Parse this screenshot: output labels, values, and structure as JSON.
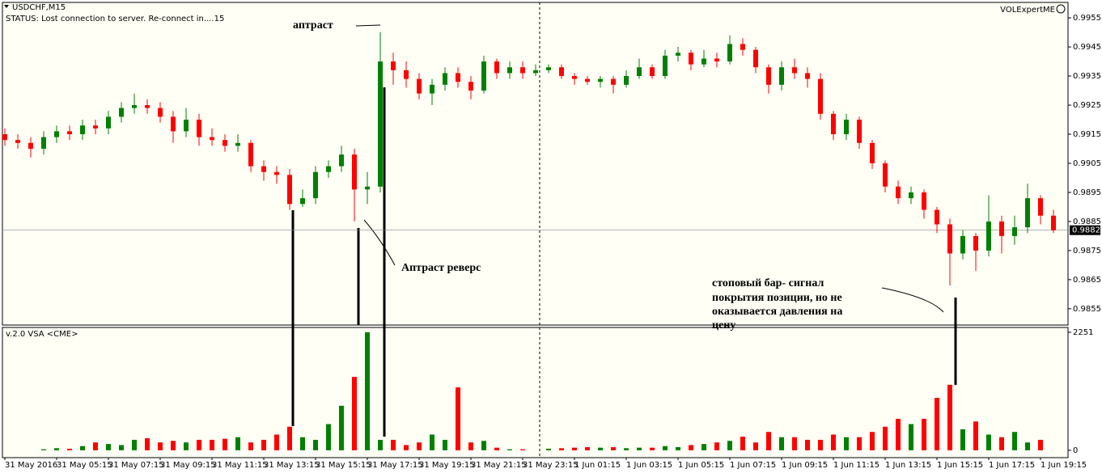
{
  "header": {
    "symbol": "USDCHF,M15",
    "status": "STATUS:  Lost connection to server. Re-connect in....15",
    "expert": "VOLExpertME"
  },
  "chart_data": [
    {
      "type": "candlestick",
      "up_color": "#008000",
      "down_color": "#ff0000",
      "categories": [
        "31 May 2016",
        null,
        null,
        null,
        "31 May 05:15",
        null,
        null,
        null,
        "31 May 07:15",
        null,
        null,
        null,
        "31 May 09:15",
        null,
        null,
        null,
        "31 May 11:15",
        null,
        null,
        null,
        "31 May 13:15",
        null,
        null,
        null,
        "31 May 15:15",
        null,
        null,
        null,
        "31 May 17:15",
        null,
        null,
        null,
        "31 May 19:15",
        null,
        null,
        null,
        "31 May 21:15",
        null,
        null,
        null,
        "31 May 23:15",
        null,
        null,
        null,
        "1 Jun 01:15",
        null,
        null,
        null,
        "1 Jun 03:15",
        null,
        null,
        null,
        "1 Jun 05:15",
        null,
        null,
        null,
        "1 Jun 07:15",
        null,
        null,
        null,
        "1 Jun 09:15",
        null,
        null,
        null,
        "1 Jun 11:15",
        null,
        null,
        null,
        "1 Jun 13:15",
        null,
        null,
        null,
        "1 Jun 15:15",
        null,
        null,
        null,
        "1 Jun 17:15",
        null,
        null,
        null,
        "1 Jun 19:15",
        null
      ],
      "open": [
        0.9915,
        0.9913,
        0.9912,
        0.991,
        0.9914,
        0.9916,
        0.9915,
        0.9918,
        0.9917,
        0.9921,
        0.9924,
        0.9925,
        0.9924,
        0.9921,
        0.9916,
        0.992,
        0.9914,
        0.9913,
        0.9911,
        0.9912,
        0.9904,
        0.9902,
        0.9901,
        0.9891,
        0.9893,
        0.9902,
        0.9904,
        0.9908,
        0.9896,
        0.9897,
        0.994,
        0.9937,
        0.9934,
        0.9929,
        0.9932,
        0.9936,
        0.9933,
        0.993,
        0.994,
        0.9936,
        0.9938,
        0.9936,
        0.9937,
        0.9938,
        0.9935,
        0.9934,
        0.9933,
        0.9934,
        0.9932,
        0.9935,
        0.9938,
        0.9935,
        0.9942,
        0.9943,
        0.9939,
        0.9941,
        0.994,
        0.9946,
        0.9944,
        0.9938,
        0.9932,
        0.9938,
        0.9936,
        0.9934,
        0.9922,
        0.9915,
        0.992,
        0.9912,
        0.9905,
        0.9897,
        0.9893,
        0.9895,
        0.9889,
        0.9884,
        0.9874,
        0.988,
        0.9875,
        0.9885,
        0.988,
        0.9883,
        0.9893,
        0.9887
      ],
      "high": [
        0.9917,
        0.9915,
        0.9914,
        0.9916,
        0.9918,
        0.9918,
        0.992,
        0.992,
        0.9923,
        0.9926,
        0.9929,
        0.9927,
        0.9926,
        0.9923,
        0.9924,
        0.9922,
        0.9917,
        0.9915,
        0.9915,
        0.9913,
        0.9906,
        0.9904,
        0.9903,
        0.9896,
        0.9904,
        0.9906,
        0.9911,
        0.991,
        0.9902,
        0.995,
        0.9943,
        0.994,
        0.9936,
        0.9934,
        0.9938,
        0.9938,
        0.9935,
        0.9942,
        0.9941,
        0.994,
        0.994,
        0.9939,
        0.9939,
        0.9939,
        0.9936,
        0.9935,
        0.9935,
        0.9935,
        0.9937,
        0.9941,
        0.9939,
        0.9944,
        0.9945,
        0.9944,
        0.9944,
        0.9943,
        0.9949,
        0.9948,
        0.9945,
        0.9939,
        0.994,
        0.9941,
        0.9938,
        0.9936,
        0.9923,
        0.9922,
        0.9921,
        0.9913,
        0.9906,
        0.9899,
        0.9897,
        0.9896,
        0.989,
        0.9886,
        0.9882,
        0.9881,
        0.9894,
        0.9887,
        0.9887,
        0.9898,
        0.9894,
        0.9889
      ],
      "low": [
        0.9911,
        0.991,
        0.9907,
        0.9908,
        0.9912,
        0.9913,
        0.9913,
        0.9915,
        0.9915,
        0.9919,
        0.9922,
        0.9922,
        0.9919,
        0.9912,
        0.9914,
        0.9911,
        0.9911,
        0.9909,
        0.9909,
        0.9902,
        0.9899,
        0.9898,
        0.9889,
        0.989,
        0.9891,
        0.99,
        0.9902,
        0.9885,
        0.9891,
        0.9895,
        0.9932,
        0.9931,
        0.9927,
        0.9925,
        0.993,
        0.9931,
        0.9927,
        0.9929,
        0.9934,
        0.9934,
        0.9934,
        0.9935,
        0.9936,
        0.9934,
        0.9932,
        0.9932,
        0.9931,
        0.9929,
        0.9931,
        0.9934,
        0.9934,
        0.9934,
        0.994,
        0.9937,
        0.9938,
        0.9938,
        0.9939,
        0.9942,
        0.9936,
        0.9929,
        0.993,
        0.9934,
        0.9931,
        0.992,
        0.9913,
        0.9913,
        0.991,
        0.9903,
        0.9895,
        0.9891,
        0.9891,
        0.9886,
        0.9881,
        0.9863,
        0.9872,
        0.9868,
        0.9873,
        0.9874,
        0.9877,
        0.9881,
        0.9884,
        0.9881
      ],
      "close": [
        0.9913,
        0.9912,
        0.991,
        0.9914,
        0.9916,
        0.9915,
        0.9918,
        0.9917,
        0.9921,
        0.9924,
        0.9925,
        0.9924,
        0.9921,
        0.9916,
        0.992,
        0.9914,
        0.9913,
        0.9911,
        0.9912,
        0.9904,
        0.9902,
        0.9901,
        0.9891,
        0.9893,
        0.9902,
        0.9904,
        0.9908,
        0.9896,
        0.9897,
        0.994,
        0.9937,
        0.9934,
        0.9929,
        0.9932,
        0.9936,
        0.9933,
        0.993,
        0.994,
        0.9936,
        0.9938,
        0.9936,
        0.9937,
        0.9938,
        0.9935,
        0.9934,
        0.9933,
        0.9934,
        0.9932,
        0.9935,
        0.9938,
        0.9935,
        0.9942,
        0.9943,
        0.9939,
        0.9941,
        0.994,
        0.9946,
        0.9944,
        0.9938,
        0.9932,
        0.9938,
        0.9936,
        0.9934,
        0.9922,
        0.9915,
        0.992,
        0.9912,
        0.9905,
        0.9897,
        0.9893,
        0.9895,
        0.9889,
        0.9884,
        0.9874,
        0.988,
        0.9875,
        0.9885,
        0.988,
        0.9883,
        0.9893,
        0.9887,
        0.9882
      ],
      "ylim": [
        0.98494,
        0.99603
      ],
      "yticks": [
        0.9855,
        0.9865,
        0.9875,
        0.9885,
        0.9895,
        0.9905,
        0.9915,
        0.9925,
        0.9935,
        0.9945,
        0.9955
      ],
      "current_price": 0.9882
    },
    {
      "type": "bar",
      "title": "v.2.0 VSA <CME>",
      "up_color": "#008000",
      "down_color": "#ff0000",
      "values": [
        0,
        0,
        0,
        20,
        40,
        30,
        80,
        150,
        120,
        100,
        200,
        230,
        150,
        180,
        150,
        200,
        200,
        220,
        250,
        150,
        200,
        300,
        450,
        250,
        200,
        500,
        850,
        1400,
        2251,
        200,
        200,
        100,
        150,
        300,
        200,
        1200,
        150,
        180,
        50,
        20,
        20,
        0,
        30,
        40,
        50,
        60,
        50,
        60,
        40,
        50,
        50,
        80,
        60,
        100,
        120,
        150,
        180,
        260,
        150,
        350,
        250,
        250,
        200,
        200,
        300,
        250,
        250,
        350,
        450,
        600,
        500,
        600,
        1000,
        1250,
        400,
        550,
        300,
        250,
        350,
        150,
        200,
        0
      ],
      "ylim": [
        -140,
        2343
      ],
      "yticks": [
        0,
        2251
      ]
    }
  ],
  "annotations": {
    "upthrust": "аптраст",
    "upthrust_reverse": "Аптраст реверс",
    "note": [
      "стоповый бар- сигнал",
      "покрытия позиции, но не",
      "оказывается давления на",
      "цену"
    ]
  }
}
